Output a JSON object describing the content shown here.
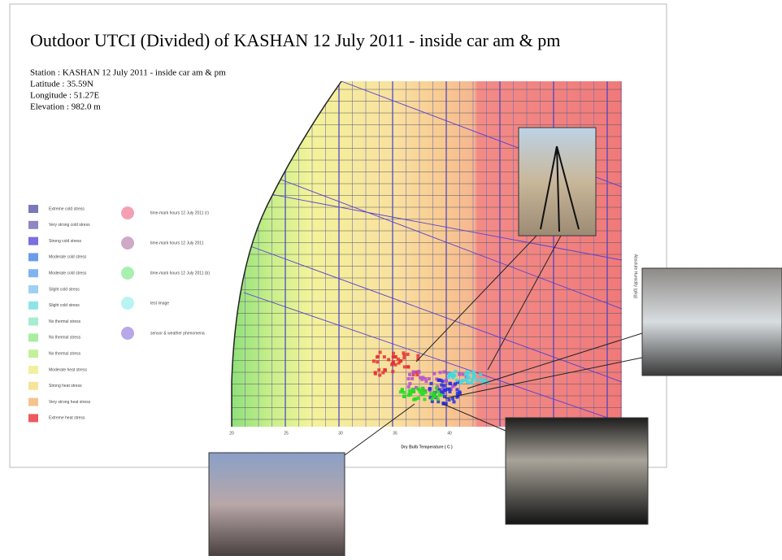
{
  "title": "Outdoor UTCI (Divided) of KASHAN 12 July 2011 - inside car am & pm",
  "station_info": [
    "Station : KASHAN 12 July 2011 - inside car am & pm",
    "Latitude : 35.59N",
    "Longitude : 51.27E",
    "Elevation : 982.0 m"
  ],
  "legend_zones": [
    "Extreme cold stress",
    "Very strong cold stress",
    "Strong cold stress",
    "Moderate cold stress",
    "Moderate cold stress",
    "Slight cold stress",
    "Slight cold stress",
    "No thermal stress",
    "No thermal stress",
    "No thermal stress",
    "Moderate heat stress",
    "Strong heat stress",
    "Very strong heat stress",
    "Extreme heat stress"
  ],
  "legend_points": [
    "time-mark hours 12 July 2011 (r)",
    "time-mark hours 12 July 2011",
    "time-mark hours 12 July 2011 (b)",
    "test image",
    "sensor & weather phenomena"
  ],
  "x_axis": {
    "label": "Dry Bulb Temperature ( C )",
    "ticks": [
      "20",
      "25",
      "30",
      "35",
      "40"
    ]
  },
  "y_axis_label": "Absolute Humidity (g/kg)"
}
